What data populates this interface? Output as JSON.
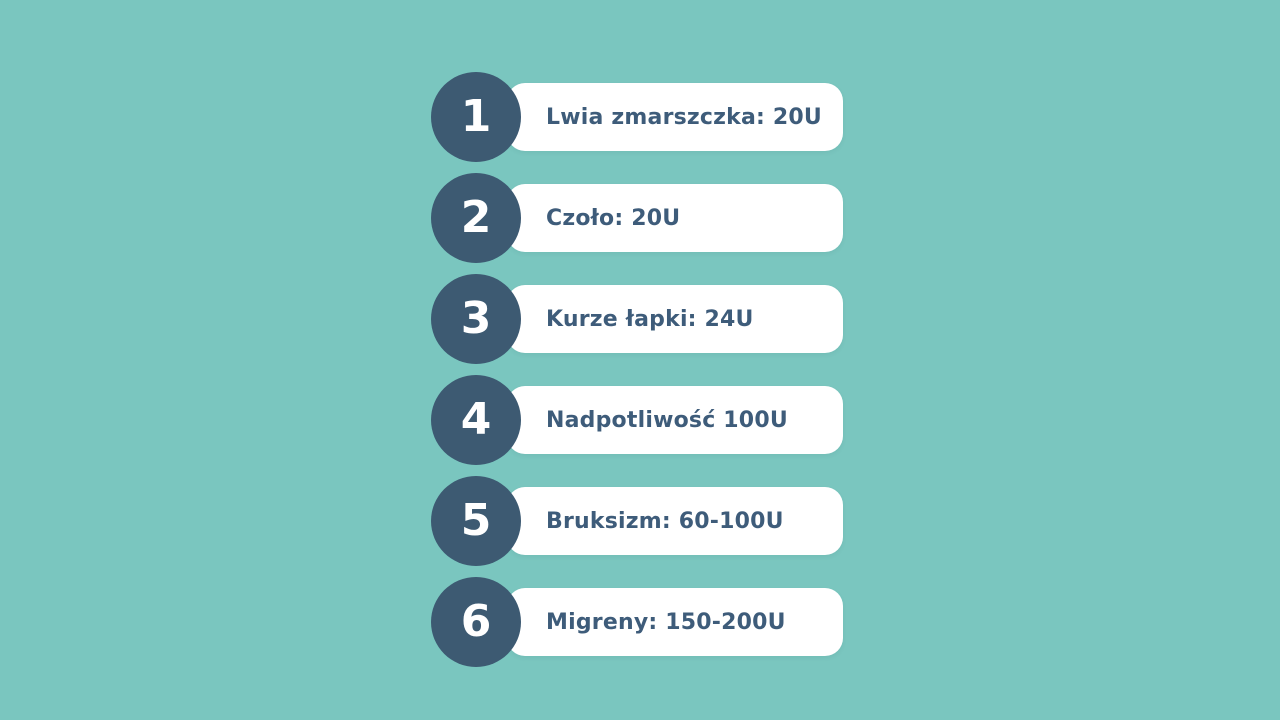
{
  "page": {
    "background_color": "#7AC6BF",
    "accent_color": "#3D5A72",
    "text_color": "#3E5C7A",
    "pill_color": "#FFFFFF"
  },
  "list": {
    "items": [
      {
        "number": "1",
        "label": "Lwia zmarszczka: 20U"
      },
      {
        "number": "2",
        "label": "Czoło: 20U"
      },
      {
        "number": "3",
        "label": "Kurze łapki: 24U"
      },
      {
        "number": "4",
        "label": "Nadpotliwość 100U"
      },
      {
        "number": "5",
        "label": "Bruksizm: 60-100U"
      },
      {
        "number": "6",
        "label": "Migreny: 150-200U"
      }
    ]
  }
}
